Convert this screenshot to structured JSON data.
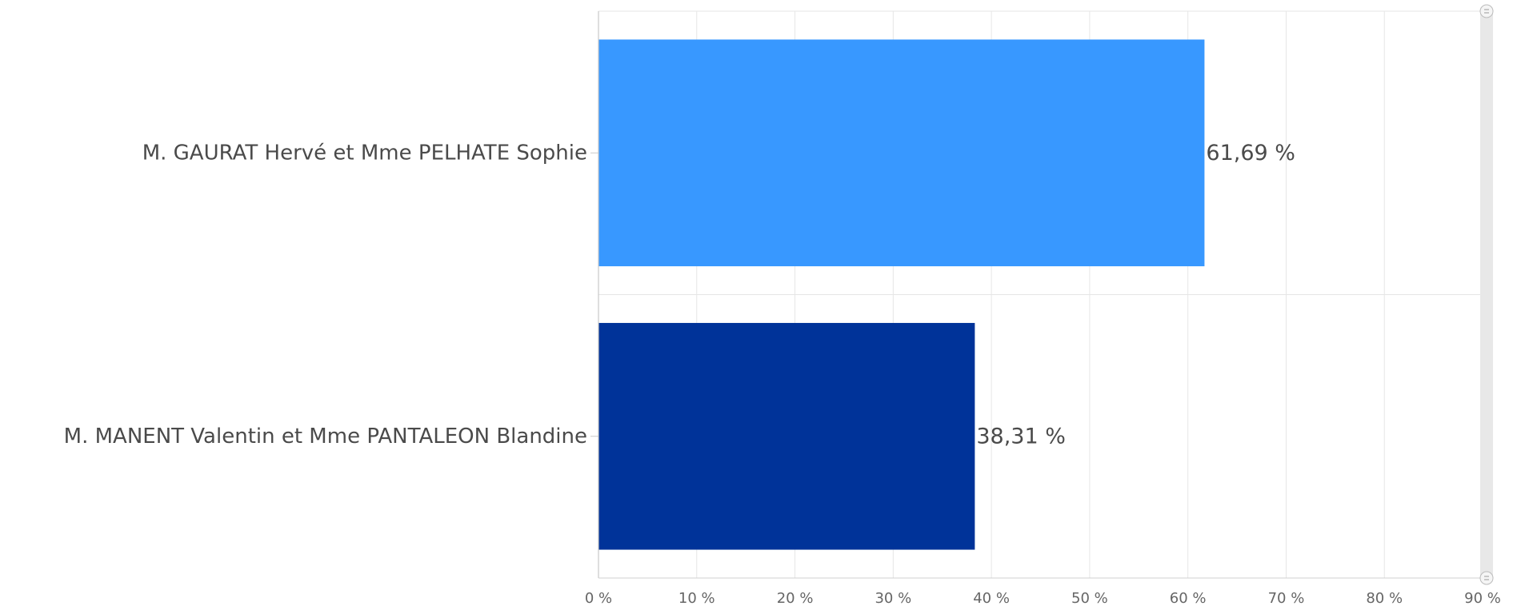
{
  "chart_data": {
    "type": "bar",
    "orientation": "horizontal",
    "categories": [
      "M. GAURAT Hervé et Mme PELHATE Sophie",
      "M. MANENT Valentin et Mme PANTALEON Blandine"
    ],
    "values": [
      61.69,
      38.31
    ],
    "value_labels": [
      "61,69 %",
      "38,31 %"
    ],
    "colors": [
      "#3898ff",
      "#003399"
    ],
    "xlim": [
      0,
      90
    ],
    "x_ticks": [
      0,
      10,
      20,
      30,
      40,
      50,
      60,
      70,
      80,
      90
    ],
    "x_tick_labels": [
      "0 %",
      "10 %",
      "20 %",
      "30 %",
      "40 %",
      "50 %",
      "60 %",
      "70 %",
      "80 %",
      "90 %"
    ],
    "grid": true,
    "title": "",
    "xlabel": "",
    "ylabel": ""
  }
}
